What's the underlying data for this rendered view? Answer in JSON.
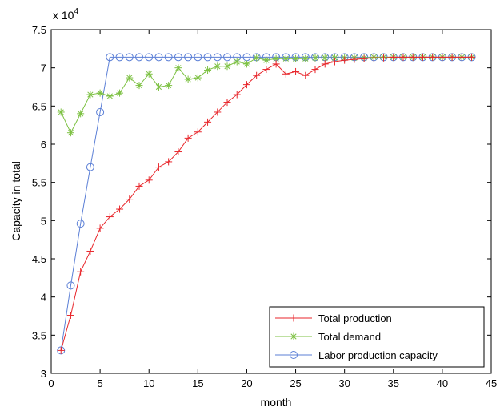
{
  "chart_data": {
    "type": "line",
    "title": "",
    "xlabel": "month",
    "ylabel": "Capacity in total",
    "y_multiplier_label": "x 10",
    "y_multiplier_exponent": "4",
    "xlim": [
      0,
      45
    ],
    "ylim": [
      3,
      7.5
    ],
    "x_ticks": [
      0,
      5,
      10,
      15,
      20,
      25,
      30,
      35,
      40,
      45
    ],
    "x_tick_labels": [
      "0",
      "5",
      "10",
      "15",
      "20",
      "25",
      "30",
      "35",
      "40",
      "45"
    ],
    "y_ticks": [
      3,
      3.5,
      4,
      4.5,
      5,
      5.5,
      6,
      6.5,
      7,
      7.5
    ],
    "y_tick_labels": [
      "3",
      "3.5",
      "4",
      "4.5",
      "5",
      "5.5",
      "6",
      "6.5",
      "7",
      "7.5"
    ],
    "grid": false,
    "legend_position": "bottom-right",
    "x": [
      1,
      2,
      3,
      4,
      5,
      6,
      7,
      8,
      9,
      10,
      11,
      12,
      13,
      14,
      15,
      16,
      17,
      18,
      19,
      20,
      21,
      22,
      23,
      24,
      25,
      26,
      27,
      28,
      29,
      30,
      31,
      32,
      33,
      34,
      35,
      36,
      37,
      38,
      39,
      40,
      41,
      42,
      43
    ],
    "series": [
      {
        "name": "Total production",
        "color": "#e8262b",
        "marker": "plus",
        "values": [
          3.3,
          3.76,
          4.33,
          4.6,
          4.9,
          5.05,
          5.15,
          5.28,
          5.45,
          5.53,
          5.7,
          5.77,
          5.9,
          6.08,
          6.16,
          6.29,
          6.42,
          6.55,
          6.65,
          6.78,
          6.9,
          6.98,
          7.05,
          6.92,
          6.95,
          6.9,
          6.98,
          7.05,
          7.08,
          7.1,
          7.11,
          7.12,
          7.13,
          7.13,
          7.14,
          7.14,
          7.14,
          7.14,
          7.14,
          7.14,
          7.14,
          7.14,
          7.14
        ]
      },
      {
        "name": "Total demand",
        "color": "#7dc143",
        "marker": "asterisk",
        "values": [
          6.42,
          6.15,
          6.4,
          6.65,
          6.67,
          6.63,
          6.67,
          6.87,
          6.77,
          6.92,
          6.75,
          6.77,
          7.0,
          6.85,
          6.87,
          6.97,
          7.02,
          7.02,
          7.08,
          7.05,
          7.13,
          7.1,
          7.12,
          7.12,
          7.12,
          7.12,
          7.13,
          7.13,
          7.13,
          7.13,
          7.13,
          7.13,
          7.14,
          7.14,
          7.14,
          7.14,
          7.14,
          7.14,
          7.14,
          7.14,
          7.14,
          7.14,
          7.14
        ]
      },
      {
        "name": "Labor production capacity",
        "color": "#5b7fd6",
        "marker": "circle",
        "values": [
          3.3,
          4.15,
          4.96,
          5.7,
          6.42,
          7.14,
          7.14,
          7.14,
          7.14,
          7.14,
          7.14,
          7.14,
          7.14,
          7.14,
          7.14,
          7.14,
          7.14,
          7.14,
          7.14,
          7.14,
          7.14,
          7.14,
          7.14,
          7.14,
          7.14,
          7.14,
          7.14,
          7.14,
          7.14,
          7.14,
          7.14,
          7.14,
          7.14,
          7.14,
          7.14,
          7.14,
          7.14,
          7.14,
          7.14,
          7.14,
          7.14,
          7.14,
          7.14
        ]
      }
    ]
  }
}
